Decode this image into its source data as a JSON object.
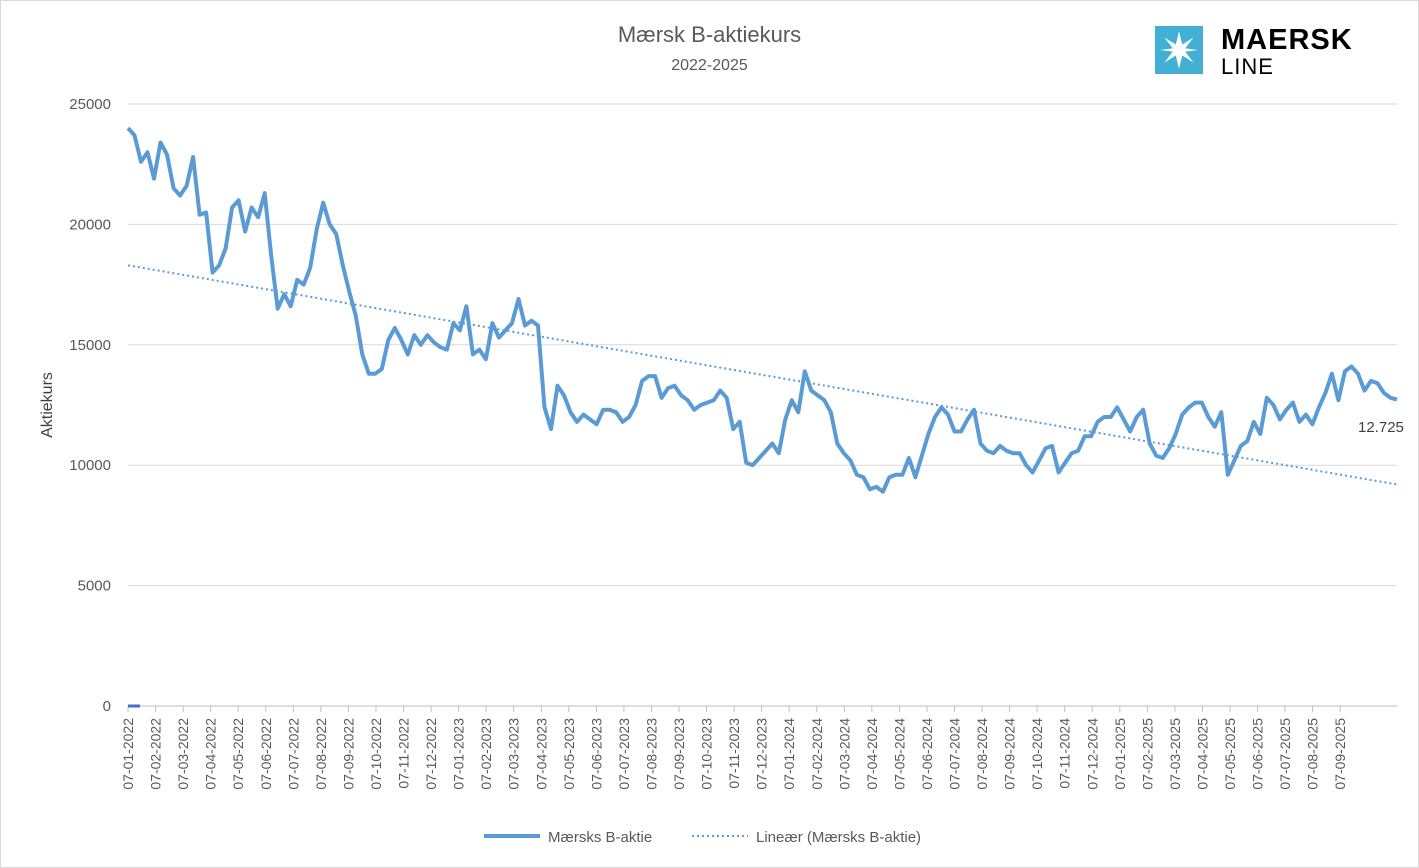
{
  "chart_data": {
    "type": "line",
    "title": "Mærsk B-aktiekurs",
    "subtitle": "2022-2025",
    "xlabel": "",
    "ylabel": "Aktiekurs",
    "ylim": [
      0,
      25000
    ],
    "yticks": [
      0,
      5000,
      10000,
      15000,
      20000,
      25000
    ],
    "grid": true,
    "legend_position": "bottom",
    "x_tick_labels": [
      "07-01-2022",
      "07-02-2022",
      "07-03-2022",
      "07-04-2022",
      "07-05-2022",
      "07-06-2022",
      "07-07-2022",
      "07-08-2022",
      "07-09-2022",
      "07-10-2022",
      "07-11-2022",
      "07-12-2022",
      "07-01-2023",
      "07-02-2023",
      "07-03-2023",
      "07-04-2023",
      "07-05-2023",
      "07-06-2023",
      "07-07-2023",
      "07-08-2023",
      "07-09-2023",
      "07-10-2023",
      "07-11-2023",
      "07-12-2023",
      "07-01-2024",
      "07-02-2024",
      "07-03-2024",
      "07-04-2024",
      "07-05-2024",
      "07-06-2024",
      "07-07-2024",
      "07-08-2024",
      "07-09-2024",
      "07-10-2024",
      "07-11-2024",
      "07-12-2024",
      "07-01-2025",
      "07-02-2025",
      "07-03-2025",
      "07-04-2025",
      "07-05-2025",
      "07-06-2025",
      "07-07-2025",
      "07-08-2025",
      "07-09-2025"
    ],
    "series": [
      {
        "name": "Mærsks B-aktie",
        "color": "#5b9bd5",
        "style": "solid",
        "values": [
          24000,
          23700,
          22600,
          23000,
          21900,
          23400,
          22900,
          21500,
          21200,
          21600,
          22800,
          20400,
          20500,
          18000,
          18300,
          19000,
          20700,
          21000,
          19700,
          20700,
          20300,
          21300,
          18700,
          16500,
          17100,
          16600,
          17700,
          17500,
          18200,
          19800,
          20900,
          20000,
          19600,
          18300,
          17200,
          16200,
          14600,
          13800,
          13800,
          14000,
          15200,
          15700,
          15200,
          14600,
          15400,
          15000,
          15400,
          15100,
          14900,
          14800,
          15900,
          15600,
          16600,
          14600,
          14800,
          14400,
          15900,
          15300,
          15600,
          15900,
          16900,
          15800,
          16000,
          15800,
          12400,
          11500,
          13300,
          12900,
          12200,
          11800,
          12100,
          11900,
          11700,
          12300,
          12300,
          12200,
          11800,
          12000,
          12500,
          13500,
          13700,
          13700,
          12800,
          13200,
          13300,
          12900,
          12700,
          12300,
          12500,
          12600,
          12700,
          13100,
          12800,
          11500,
          11800,
          10100,
          10000,
          10300,
          10600,
          10900,
          10500,
          11900,
          12700,
          12200,
          13900,
          13100,
          12900,
          12700,
          12200,
          10900,
          10500,
          10200,
          9600,
          9500,
          9000,
          9100,
          8900,
          9500,
          9600,
          9600,
          10300,
          9500,
          10400,
          11300,
          12000,
          12400,
          12100,
          11400,
          11400,
          11900,
          12300,
          10900,
          10600,
          10500,
          10800,
          10600,
          10500,
          10500,
          10000,
          9700,
          10200,
          10700,
          10800,
          9700,
          10100,
          10500,
          10600,
          11200,
          11200,
          11800,
          12000,
          12000,
          12400,
          11900,
          11400,
          12000,
          12300,
          10900,
          10400,
          10300,
          10700,
          11300,
          12100,
          12400,
          12600,
          12600,
          12000,
          11600,
          12200,
          9600,
          10200,
          10800,
          11000,
          11800,
          11300,
          12800,
          12500,
          11900,
          12300,
          12600,
          11800,
          12100,
          11700,
          12400,
          13000,
          13800,
          12700,
          13900,
          14100,
          13800,
          13100,
          13500,
          13400,
          13000,
          12800,
          12725
        ]
      },
      {
        "name": "Lineær (Mærsks B-aktie)",
        "color": "#5b9bd5",
        "style": "dotted",
        "type": "linear-trend",
        "values": [
          18300,
          9200
        ]
      }
    ],
    "last_value_label": "12.725"
  },
  "logo": {
    "word": "MAERSK",
    "sub": "LINE",
    "color": "#42b0d5"
  }
}
